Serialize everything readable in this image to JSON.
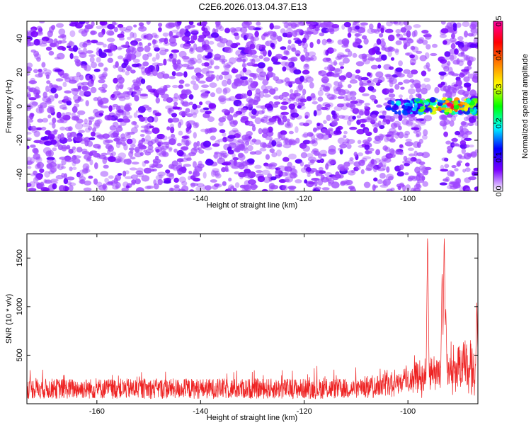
{
  "title": "C2E6.2026.013.04.37.E13",
  "chart_data": [
    {
      "type": "heatmap",
      "title": "C2E6.2026.013.04.37.E13",
      "xlabel": "Height of straight line (km)",
      "ylabel": "Frequency (Hz)",
      "xlim": [
        -173.5,
        -86.5
      ],
      "ylim": [
        -50,
        50
      ],
      "xticks": [
        -160,
        -140,
        -120,
        -100
      ],
      "yticks": [
        -40,
        -20,
        0,
        20,
        40
      ],
      "xtick_labels": [
        "-160",
        "-140",
        "-120",
        "-100"
      ],
      "ytick_labels": [
        "-40",
        "-20",
        "0",
        "20",
        "40"
      ],
      "colorbar": {
        "label": "Normalized spectral amplitude",
        "range": [
          0,
          0.5
        ],
        "ticks": [
          "0.0",
          "0.1",
          "0.2",
          "0.3",
          "0.4",
          "0.5"
        ],
        "colors": [
          "#ffffff",
          "#7a00ff",
          "#0000ff",
          "#00ffff",
          "#00ff00",
          "#ffff00",
          "#ff8000",
          "#ff0000",
          "#ff00a0"
        ]
      },
      "background_amplitude": [
        0.0,
        0.08
      ],
      "signal": {
        "x_range": [
          -104,
          -86.5
        ],
        "freq_center": 0,
        "freq_halfwidth": 4,
        "peak_amplitude": 0.48,
        "peak_x": -92
      },
      "gaps_x": [
        -96,
        -93.5
      ]
    },
    {
      "type": "line",
      "xlabel": "Height of straight line (km)",
      "ylabel": "SNR (10 * v/v)",
      "xlim": [
        -173.5,
        -86.5
      ],
      "ylim": [
        0,
        1750
      ],
      "xticks": [
        -160,
        -140,
        -120,
        -100
      ],
      "yticks": [
        500,
        1000,
        1500
      ],
      "xtick_labels": [
        "-160",
        "-140",
        "-120",
        "-100"
      ],
      "ytick_labels": [
        "500",
        "1000",
        "1500"
      ],
      "color": "#ee2222",
      "baseline_range": [
        50,
        350
      ],
      "rise_start_x": -110,
      "peaks": [
        {
          "x": -96.2,
          "y": 1750
        },
        {
          "x": -93.0,
          "y": 1750
        },
        {
          "x": -93.4,
          "y": 1380
        },
        {
          "x": -92.7,
          "y": 1000
        },
        {
          "x": -86.7,
          "y": 1050
        }
      ]
    }
  ]
}
